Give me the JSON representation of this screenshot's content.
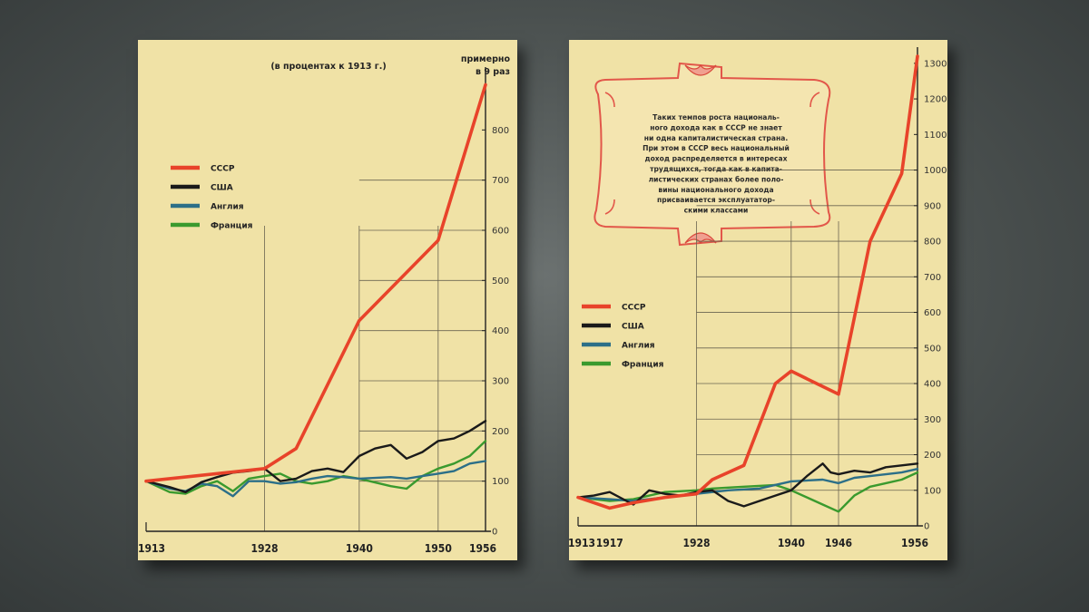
{
  "chart_data": [
    {
      "type": "line",
      "title": "(в процентах к 1913 г.)",
      "annotation": [
        "примерно",
        "в 9 раз"
      ],
      "x_ticks": [
        "1913",
        "1928",
        "1940",
        "1950",
        "1956"
      ],
      "y_ticks": [
        "0",
        "100",
        "200",
        "300",
        "400",
        "500",
        "600",
        "700",
        "800"
      ],
      "xlim": [
        1913,
        1956
      ],
      "ylim": [
        0,
        900
      ],
      "legend_position": "left",
      "series": [
        {
          "name": "СССР",
          "color": "#e8432a",
          "x": [
            1913,
            1928,
            1932,
            1940,
            1950,
            1956
          ],
          "values": [
            100,
            125,
            165,
            420,
            580,
            890
          ]
        },
        {
          "name": "США",
          "color": "#1a1a1a",
          "x": [
            1913,
            1916,
            1918,
            1920,
            1922,
            1924,
            1926,
            1928,
            1930,
            1932,
            1934,
            1936,
            1938,
            1940,
            1942,
            1944,
            1946,
            1948,
            1950,
            1952,
            1954,
            1956
          ],
          "values": [
            100,
            88,
            78,
            98,
            108,
            117,
            120,
            125,
            100,
            105,
            120,
            125,
            118,
            150,
            165,
            172,
            145,
            158,
            180,
            185,
            200,
            220
          ]
        },
        {
          "name": "Англия",
          "color": "#2c6f88",
          "x": [
            1913,
            1916,
            1918,
            1920,
            1922,
            1924,
            1926,
            1928,
            1930,
            1932,
            1934,
            1936,
            1938,
            1940,
            1944,
            1946,
            1948,
            1950,
            1952,
            1954,
            1956
          ],
          "values": [
            100,
            85,
            80,
            95,
            90,
            70,
            100,
            100,
            95,
            98,
            105,
            110,
            108,
            105,
            108,
            105,
            110,
            115,
            120,
            135,
            140
          ]
        },
        {
          "name": "Франция",
          "color": "#3a9a2e",
          "x": [
            1913,
            1916,
            1918,
            1920,
            1922,
            1924,
            1926,
            1928,
            1930,
            1932,
            1934,
            1936,
            1938,
            1940,
            1944,
            1946,
            1948,
            1950,
            1952,
            1954,
            1956
          ],
          "values": [
            100,
            78,
            75,
            90,
            100,
            80,
            105,
            110,
            115,
            100,
            95,
            100,
            110,
            105,
            90,
            85,
            110,
            125,
            135,
            150,
            180
          ]
        }
      ]
    },
    {
      "type": "line",
      "note": [
        "Таких темпов роста националь-",
        "ного дохода как в СССР не знает",
        "ни одна капиталистическая страна.",
        "При этом в СССР весь национальный",
        "доход распределяется в интересах",
        "трудящихся, тогда как в капита-",
        "листических странах более поло-",
        "вины национального дохода",
        "присваивается эксплуататор-",
        "скими классами"
      ],
      "x_ticks": [
        "1913",
        "1917",
        "1928",
        "1940",
        "1946",
        "1956"
      ],
      "y_ticks": [
        "0",
        "100",
        "200",
        "300",
        "400",
        "500",
        "600",
        "700",
        "800",
        "900",
        "1000",
        "1100",
        "1200",
        "1300"
      ],
      "xlim": [
        1913,
        1956
      ],
      "ylim": [
        0,
        1320
      ],
      "legend_position": "left",
      "series": [
        {
          "name": "СССР",
          "color": "#e8432a",
          "x": [
            1913,
            1917,
            1920,
            1924,
            1928,
            1930,
            1934,
            1938,
            1940,
            1946,
            1950,
            1954,
            1956
          ],
          "values": [
            80,
            50,
            65,
            80,
            90,
            130,
            170,
            400,
            435,
            370,
            800,
            990,
            1320
          ]
        },
        {
          "name": "США",
          "color": "#1a1a1a",
          "x": [
            1913,
            1915,
            1917,
            1920,
            1922,
            1924,
            1926,
            1928,
            1930,
            1932,
            1934,
            1936,
            1938,
            1940,
            1942,
            1944,
            1945,
            1946,
            1948,
            1950,
            1952,
            1954,
            1956
          ],
          "values": [
            80,
            85,
            95,
            60,
            100,
            90,
            85,
            95,
            100,
            70,
            55,
            70,
            85,
            100,
            140,
            175,
            150,
            145,
            155,
            150,
            165,
            170,
            175
          ]
        },
        {
          "name": "Англия",
          "color": "#2c6f88",
          "x": [
            1913,
            1917,
            1920,
            1924,
            1928,
            1932,
            1936,
            1940,
            1944,
            1946,
            1948,
            1950,
            1952,
            1954,
            1956
          ],
          "values": [
            80,
            75,
            70,
            80,
            90,
            100,
            105,
            125,
            130,
            120,
            135,
            140,
            145,
            150,
            160
          ]
        },
        {
          "name": "Франция",
          "color": "#3a9a2e",
          "x": [
            1913,
            1917,
            1920,
            1924,
            1928,
            1930,
            1934,
            1938,
            1940,
            1942,
            1944,
            1946,
            1948,
            1950,
            1952,
            1954,
            1956
          ],
          "values": [
            80,
            70,
            75,
            95,
            100,
            105,
            110,
            115,
            100,
            80,
            60,
            40,
            85,
            110,
            120,
            130,
            150
          ]
        }
      ]
    }
  ]
}
